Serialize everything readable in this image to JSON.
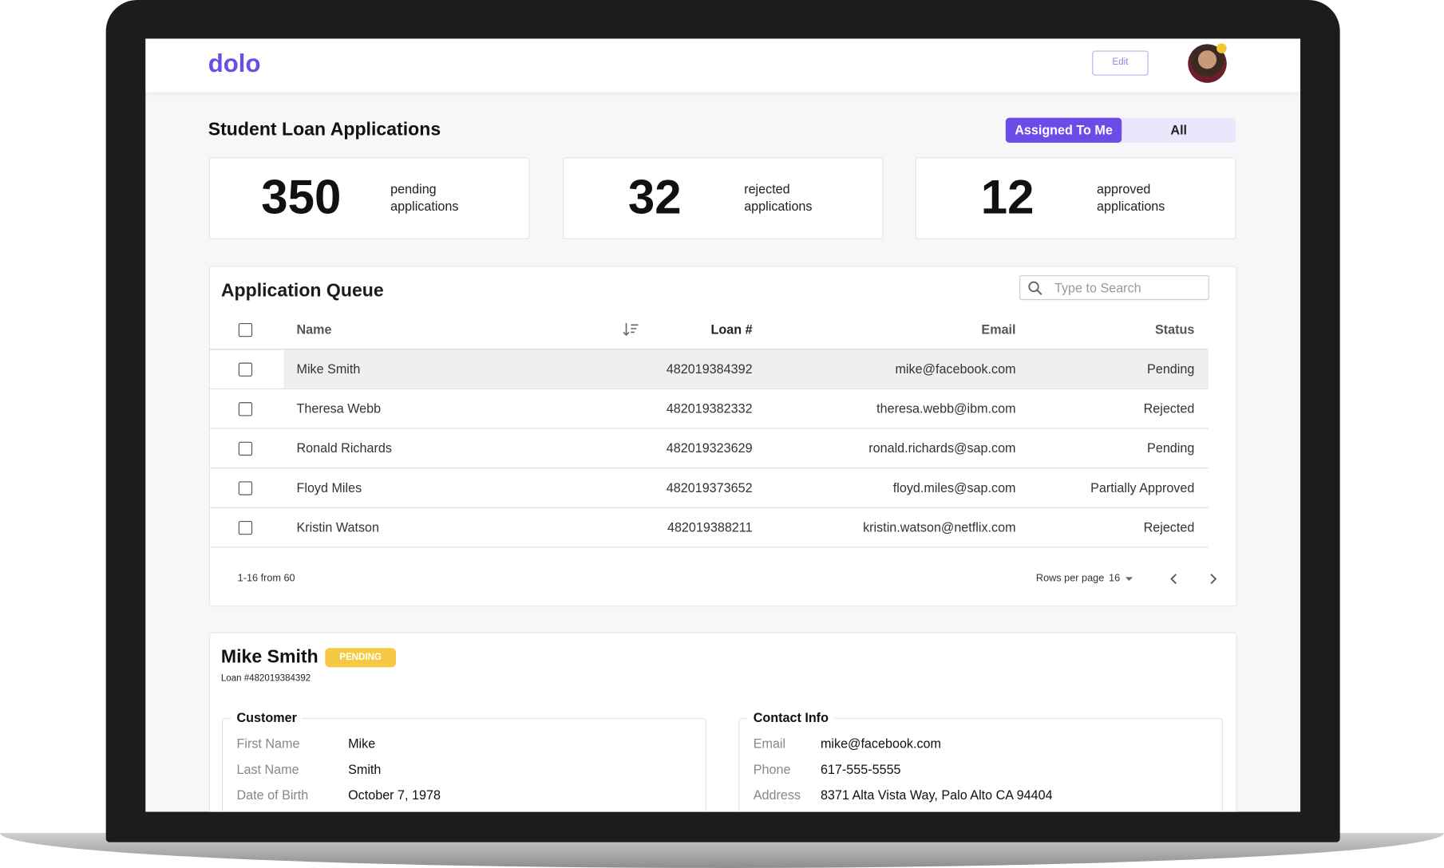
{
  "header": {
    "logo": "dolo",
    "edit_button": "Edit"
  },
  "page": {
    "title": "Student Loan Applications",
    "tabs": [
      "Assigned To Me",
      "All"
    ]
  },
  "stats": [
    {
      "number": "350",
      "label": "pending applications"
    },
    {
      "number": "32",
      "label": "rejected applications"
    },
    {
      "number": "12",
      "label": "approved applications"
    }
  ],
  "queue": {
    "title": "Application Queue",
    "search_placeholder": "Type to Search",
    "columns": [
      "Name",
      "Loan #",
      "Email",
      "Status"
    ],
    "rows": [
      [
        "Mike Smith",
        "482019384392",
        "mike@facebook.com",
        "Pending"
      ],
      [
        "Theresa Webb",
        "482019382332",
        "theresa.webb@ibm.com",
        "Rejected"
      ],
      [
        "Ronald Richards",
        "482019323629",
        "ronald.richards@sap.com",
        "Pending"
      ],
      [
        "Floyd Miles",
        "482019373652",
        "floyd.miles@sap.com",
        "Partially Approved"
      ],
      [
        "Kristin Watson",
        "482019388211",
        "kristin.watson@netflix.com",
        "Rejected"
      ]
    ],
    "pagination": {
      "range": "1-16 from 60",
      "rows_per_page_label": "Rows per page",
      "rows_per_page": "16"
    }
  },
  "detail": {
    "name": "Mike Smith",
    "badge": "PENDING",
    "loan": "Loan #482019384392",
    "sections": [
      {
        "title": "Customer",
        "fields": [
          [
            "First Name",
            "Mike"
          ],
          [
            "Last Name",
            "Smith"
          ],
          [
            "Date of Birth",
            "October 7, 1978"
          ]
        ]
      },
      {
        "title": "Contact Info",
        "fields": [
          [
            "Email",
            "mike@facebook.com"
          ],
          [
            "Phone",
            "617-555-5555"
          ],
          [
            "Address",
            "8371 Alta Vista Way, Palo Alto CA 94404"
          ]
        ]
      }
    ]
  }
}
